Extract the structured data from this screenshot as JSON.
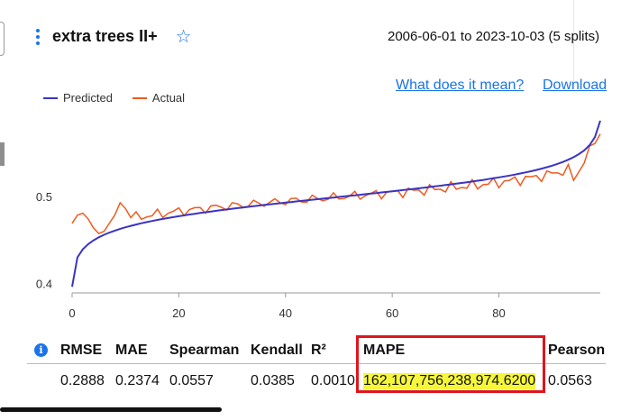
{
  "widget": {
    "title": "extra trees II+",
    "date_range": "2006-06-01 to 2023-10-03 (5 splits)",
    "links": {
      "what": "What does it mean?",
      "download": "Download"
    },
    "icons": [
      "kebab-menu-icon",
      "star-icon",
      "info-icon"
    ]
  },
  "colors": {
    "predicted": "#3a34c2",
    "actual": "#ef5a1e",
    "link": "#1a73e8",
    "highlight": "#f6f73a",
    "box": "#e0141c"
  },
  "chart_data": {
    "type": "line",
    "series": [
      {
        "name": "Predicted",
        "color": "#3a34c2"
      },
      {
        "name": "Actual",
        "color": "#ef5a1e"
      }
    ],
    "x_ticks": [
      "0",
      "20",
      "40",
      "60",
      "80"
    ],
    "y_ticks": [
      "0.5",
      "0.4"
    ],
    "xlim": [
      0,
      99
    ],
    "ylim": [
      0.39,
      0.59
    ],
    "grid": false,
    "legend": "top-left"
  },
  "metrics": {
    "headers": [
      "RMSE",
      "MAE",
      "Spearman",
      "Kendall",
      "R²",
      "MAPE",
      "Pearson"
    ],
    "values": [
      "0.2888",
      "0.2374",
      "0.0557",
      "0.0385",
      "0.0010",
      "162,107,756,238,974.6200",
      "0.0563"
    ]
  }
}
